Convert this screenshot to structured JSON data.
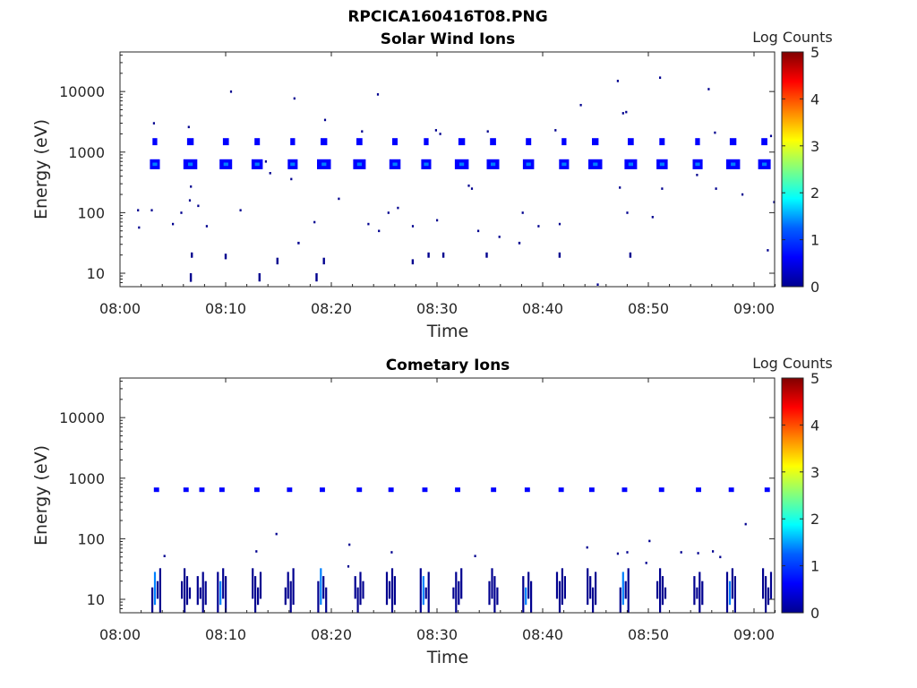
{
  "figure": {
    "title": "RPCICA160416T08.PNG"
  },
  "colormap": {
    "name": "jet",
    "stops": [
      "#00008f",
      "#0000ff",
      "#0080ff",
      "#00ffff",
      "#80ff80",
      "#ffff00",
      "#ff8000",
      "#ff0000",
      "#800000"
    ]
  },
  "chart_data": [
    {
      "type": "heatmap",
      "title": "Solar Wind Ions",
      "xlabel": "Time",
      "ylabel": "Energy (eV)",
      "xticks": [
        "08:00",
        "08:10",
        "08:20",
        "08:30",
        "08:40",
        "08:50",
        "09:00"
      ],
      "xlim": [
        0,
        62.5
      ],
      "ylim": [
        6,
        45000
      ],
      "yscale": "log",
      "yticks": [
        10,
        100,
        1000,
        10000
      ],
      "ytick_labels": [
        "10",
        "100",
        "1000",
        "10000"
      ],
      "colorbar": {
        "label": "Log Counts",
        "range": [
          0,
          5
        ],
        "ticks": [
          "0",
          "1",
          "2",
          "3",
          "4",
          "5"
        ]
      },
      "grid": false,
      "bands": [
        {
          "name": "main",
          "energy_low": 520,
          "energy_high": 760,
          "t_start": 3.3,
          "t_end": 61.5,
          "period": 3.2,
          "width": 1.25,
          "level": 1.2
        },
        {
          "name": "alpha",
          "energy_low": 1300,
          "energy_high": 1700,
          "t_start": 3.3,
          "t_end": 61.5,
          "period": 3.2,
          "width": 0.6,
          "level": 0.5
        }
      ],
      "specks": [
        [
          1.7,
          110
        ],
        [
          1.8,
          57
        ],
        [
          3.2,
          3000
        ],
        [
          3.0,
          110
        ],
        [
          5.0,
          65
        ],
        [
          5.8,
          100
        ],
        [
          6.5,
          2600
        ],
        [
          6.6,
          160
        ],
        [
          6.7,
          270
        ],
        [
          7.4,
          130
        ],
        [
          8.2,
          60
        ],
        [
          10.5,
          10000
        ],
        [
          11.4,
          110
        ],
        [
          13.8,
          700
        ],
        [
          14.2,
          450
        ],
        [
          16.5,
          7700
        ],
        [
          16.2,
          360
        ],
        [
          19.4,
          3400
        ],
        [
          18.4,
          70
        ],
        [
          20.7,
          170
        ],
        [
          22.9,
          2200
        ],
        [
          23.5,
          65
        ],
        [
          24.4,
          9000
        ],
        [
          24.5,
          50
        ],
        [
          25.4,
          100
        ],
        [
          26.3,
          120
        ],
        [
          27.7,
          60
        ],
        [
          29.9,
          2300
        ],
        [
          30.3,
          2000
        ],
        [
          30.0,
          75
        ],
        [
          33.0,
          280
        ],
        [
          33.3,
          250
        ],
        [
          33.9,
          50
        ],
        [
          34.8,
          2200
        ],
        [
          35.9,
          40
        ],
        [
          38.1,
          100
        ],
        [
          39.6,
          60
        ],
        [
          41.2,
          2300
        ],
        [
          41.6,
          65
        ],
        [
          43.6,
          6000
        ],
        [
          47.1,
          15000
        ],
        [
          47.6,
          4400
        ],
        [
          47.9,
          4600
        ],
        [
          47.3,
          260
        ],
        [
          48.0,
          100
        ],
        [
          50.4,
          85
        ],
        [
          51.1,
          17000
        ],
        [
          51.3,
          250
        ],
        [
          54.6,
          420
        ],
        [
          55.7,
          11000
        ],
        [
          56.3,
          2100
        ],
        [
          56.4,
          250
        ],
        [
          58.9,
          200
        ],
        [
          61.6,
          1850
        ],
        [
          61.9,
          150
        ],
        [
          61.3,
          24
        ],
        [
          45.2,
          6.5
        ]
      ],
      "stripes": [
        [
          6.7,
          7.2,
          10
        ],
        [
          6.8,
          18,
          22
        ],
        [
          10.0,
          17,
          21
        ],
        [
          13.2,
          7.3,
          10
        ],
        [
          14.9,
          14,
          18
        ],
        [
          16.9,
          30,
          33
        ],
        [
          18.6,
          7.3,
          10
        ],
        [
          19.3,
          14,
          18
        ],
        [
          27.7,
          14,
          17
        ],
        [
          29.2,
          18,
          22
        ],
        [
          30.6,
          18,
          22
        ],
        [
          34.7,
          18,
          22
        ],
        [
          37.8,
          30,
          33
        ],
        [
          41.6,
          18,
          22
        ],
        [
          48.3,
          18,
          22
        ]
      ]
    },
    {
      "type": "heatmap",
      "title": "Cometary Ions",
      "xlabel": "Time",
      "ylabel": "Energy (eV)",
      "xticks": [
        "08:00",
        "08:10",
        "08:20",
        "08:30",
        "08:40",
        "08:50",
        "09:00"
      ],
      "xlim": [
        0,
        62.5
      ],
      "ylim": [
        6,
        45000
      ],
      "yscale": "log",
      "yticks": [
        10,
        100,
        1000,
        10000
      ],
      "ytick_labels": [
        "10",
        "100",
        "1000",
        "10000"
      ],
      "colorbar": {
        "label": "Log Counts",
        "range": [
          0,
          5
        ],
        "ticks": [
          "0",
          "1",
          "2",
          "3",
          "4",
          "5"
        ]
      },
      "grid": false,
      "columns": [
        3.4,
        6.2,
        7.7,
        9.6,
        12.9,
        16.0,
        19.1,
        22.6,
        25.6,
        28.8,
        31.9,
        35.3,
        38.5,
        41.7,
        44.6,
        47.7,
        51.2,
        54.7,
        57.8,
        61.2
      ],
      "column_top": 35,
      "column_bottom": 6,
      "upper_row": {
        "energy_low": 590,
        "energy_high": 700,
        "level": 0.4
      },
      "specks": [
        [
          4.2,
          52
        ],
        [
          12.9,
          62
        ],
        [
          14.8,
          120
        ],
        [
          21.7,
          80
        ],
        [
          21.6,
          35
        ],
        [
          25.7,
          60
        ],
        [
          33.6,
          52
        ],
        [
          44.2,
          72
        ],
        [
          47.1,
          57
        ],
        [
          48.0,
          60
        ],
        [
          50.1,
          92
        ],
        [
          53.1,
          60
        ],
        [
          54.7,
          58
        ],
        [
          56.1,
          62
        ],
        [
          56.8,
          50
        ],
        [
          59.2,
          175
        ],
        [
          49.8,
          40
        ]
      ]
    }
  ]
}
